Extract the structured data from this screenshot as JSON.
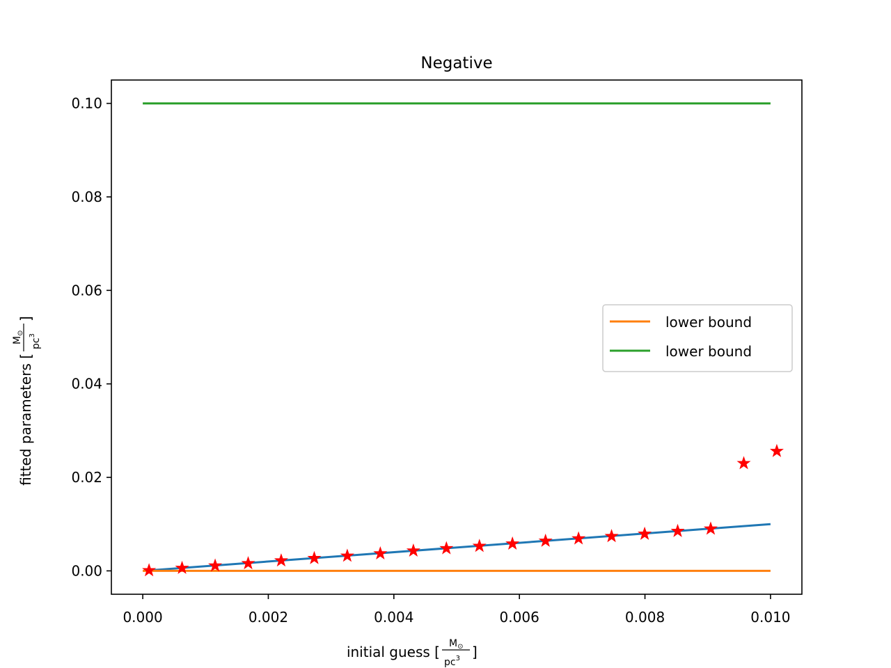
{
  "chart_data": {
    "type": "line",
    "title": "Negative",
    "xlabel": {
      "prefix": "initial guess [",
      "num": "M",
      "sub": "⊙",
      "den": "pc",
      "sup": "3",
      "suffix": "]"
    },
    "ylabel": {
      "prefix": "fitted parameters [",
      "num": "M",
      "sub": "⊙",
      "den": "pc",
      "sup": "3",
      "suffix": "]"
    },
    "xlim": [
      -0.0005,
      0.0105
    ],
    "ylim": [
      -0.005,
      0.105
    ],
    "x_ticks": [
      {
        "value": 0.0,
        "label": "0.000"
      },
      {
        "value": 0.002,
        "label": "0.002"
      },
      {
        "value": 0.004,
        "label": "0.004"
      },
      {
        "value": 0.006,
        "label": "0.006"
      },
      {
        "value": 0.008,
        "label": "0.008"
      },
      {
        "value": 0.01,
        "label": "0.010"
      }
    ],
    "y_ticks": [
      {
        "value": 0.0,
        "label": "0.00"
      },
      {
        "value": 0.02,
        "label": "0.02"
      },
      {
        "value": 0.04,
        "label": "0.04"
      },
      {
        "value": 0.06,
        "label": "0.06"
      },
      {
        "value": 0.08,
        "label": "0.08"
      },
      {
        "value": 0.1,
        "label": "0.10"
      }
    ],
    "grid": false,
    "legend_position": "center-right",
    "series": [
      {
        "name": "",
        "kind": "line",
        "color": "#1f77b4",
        "x": [
          0.0001,
          0.01
        ],
        "y": [
          0.0001,
          0.01
        ]
      },
      {
        "name": "lower bound",
        "kind": "line",
        "color": "#ff7f0e",
        "x": [
          0.0,
          0.01
        ],
        "y": [
          0.0,
          0.0
        ]
      },
      {
        "name": "lower bound",
        "kind": "line",
        "color": "#2ca02c",
        "x": [
          0.0,
          0.01
        ],
        "y": [
          0.1,
          0.1
        ]
      },
      {
        "name": "",
        "kind": "scatter",
        "marker": "star",
        "color": "#ff0000",
        "x": [
          0.0001,
          0.000626,
          0.001153,
          0.001679,
          0.002205,
          0.002732,
          0.003258,
          0.003784,
          0.004311,
          0.004837,
          0.005363,
          0.005889,
          0.006416,
          0.006942,
          0.007468,
          0.007995,
          0.008521,
          0.009047,
          0.009574,
          0.0101
        ],
        "y": [
          0.0001,
          0.0006,
          0.0011,
          0.0016,
          0.0022,
          0.0027,
          0.0032,
          0.0037,
          0.0043,
          0.0048,
          0.0053,
          0.0058,
          0.0064,
          0.0069,
          0.0074,
          0.0079,
          0.0085,
          0.009,
          0.023,
          0.0256
        ]
      }
    ]
  }
}
